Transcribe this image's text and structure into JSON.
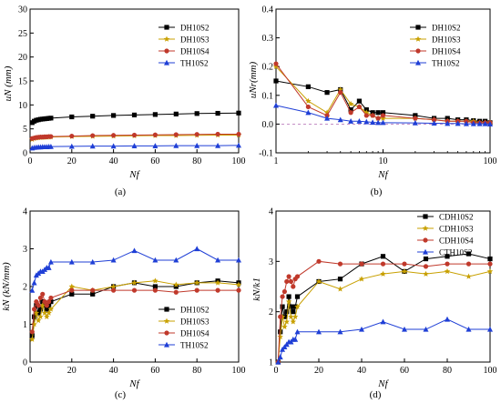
{
  "chart_data": [
    {
      "type": "line",
      "caption": "(a)",
      "xlabel": "Nf",
      "ylabel": "uN (mm)",
      "xlim": [
        0,
        100
      ],
      "ylim": [
        0,
        30
      ],
      "xticks": [
        0,
        20,
        40,
        60,
        80,
        100
      ],
      "yticks": [
        0,
        5,
        10,
        15,
        20,
        25,
        30
      ],
      "xscale": "linear",
      "legend": "upper-right",
      "series": [
        {
          "name": "DH10S2",
          "color": "#000000",
          "marker": "square",
          "x": [
            1,
            2,
            3,
            4,
            5,
            6,
            7,
            8,
            9,
            10,
            20,
            30,
            40,
            50,
            60,
            70,
            80,
            90,
            100
          ],
          "y": [
            6.3,
            6.6,
            6.8,
            6.9,
            7.0,
            7.05,
            7.1,
            7.15,
            7.2,
            7.25,
            7.5,
            7.65,
            7.8,
            7.9,
            8.0,
            8.1,
            8.2,
            8.25,
            8.3
          ]
        },
        {
          "name": "DH10S3",
          "color": "#c8a000",
          "marker": "star",
          "x": [
            1,
            2,
            3,
            4,
            5,
            6,
            7,
            8,
            9,
            10,
            20,
            30,
            40,
            50,
            60,
            70,
            80,
            90,
            100
          ],
          "y": [
            2.8,
            3.0,
            3.1,
            3.15,
            3.2,
            3.2,
            3.25,
            3.25,
            3.3,
            3.3,
            3.4,
            3.45,
            3.5,
            3.55,
            3.6,
            3.6,
            3.65,
            3.7,
            3.7
          ]
        },
        {
          "name": "DH10S4",
          "color": "#c0392b",
          "marker": "circle",
          "x": [
            1,
            2,
            3,
            4,
            5,
            6,
            7,
            8,
            9,
            10,
            20,
            30,
            40,
            50,
            60,
            70,
            80,
            90,
            100
          ],
          "y": [
            3.0,
            3.1,
            3.2,
            3.25,
            3.3,
            3.3,
            3.35,
            3.35,
            3.4,
            3.4,
            3.5,
            3.6,
            3.65,
            3.7,
            3.75,
            3.8,
            3.85,
            3.9,
            3.9
          ]
        },
        {
          "name": "TH10S2",
          "color": "#1f3fd6",
          "marker": "triangle",
          "x": [
            1,
            2,
            3,
            4,
            5,
            6,
            7,
            8,
            9,
            10,
            20,
            30,
            40,
            50,
            60,
            70,
            80,
            90,
            100
          ],
          "y": [
            1.0,
            1.1,
            1.15,
            1.2,
            1.2,
            1.25,
            1.25,
            1.25,
            1.3,
            1.3,
            1.35,
            1.4,
            1.4,
            1.45,
            1.45,
            1.5,
            1.5,
            1.5,
            1.55
          ]
        }
      ]
    },
    {
      "type": "line",
      "caption": "(b)",
      "xlabel": "Nf",
      "ylabel": "uNr(mm)",
      "xlim": [
        1,
        100
      ],
      "ylim": [
        -0.1,
        0.4
      ],
      "xticks": [
        1,
        10,
        100
      ],
      "yticks": [
        -0.1,
        0.0,
        0.1,
        0.2,
        0.3,
        0.4
      ],
      "xscale": "log",
      "legend": "upper-right",
      "series": [
        {
          "name": "DH10S2",
          "color": "#000000",
          "marker": "square",
          "x": [
            1,
            2,
            3,
            4,
            5,
            6,
            7,
            8,
            9,
            10,
            20,
            30,
            40,
            50,
            60,
            70,
            80,
            90,
            100
          ],
          "y": [
            0.15,
            0.13,
            0.11,
            0.12,
            0.05,
            0.08,
            0.05,
            0.04,
            0.04,
            0.04,
            0.03,
            0.02,
            0.02,
            0.015,
            0.015,
            0.012,
            0.01,
            0.01,
            0.005
          ]
        },
        {
          "name": "DH10S3",
          "color": "#c8a000",
          "marker": "star",
          "x": [
            1,
            2,
            3,
            4,
            5,
            6,
            7,
            8,
            9,
            10,
            20,
            30,
            40,
            50,
            60,
            70,
            80,
            90,
            100
          ],
          "y": [
            0.2,
            0.08,
            0.04,
            0.12,
            0.07,
            0.06,
            0.04,
            0.03,
            0.02,
            0.02,
            0.02,
            0.015,
            0.01,
            0.01,
            0.01,
            0.01,
            0.005,
            0.005,
            0.005
          ]
        },
        {
          "name": "DH10S4",
          "color": "#c0392b",
          "marker": "circle",
          "x": [
            1,
            2,
            3,
            4,
            5,
            6,
            7,
            8,
            9,
            10,
            20,
            30,
            40,
            50,
            60,
            70,
            80,
            90,
            100
          ],
          "y": [
            0.21,
            0.06,
            0.03,
            0.11,
            0.04,
            0.06,
            0.03,
            0.03,
            0.02,
            0.03,
            0.02,
            0.015,
            0.01,
            0.01,
            0.01,
            0.005,
            0.005,
            0.005,
            0.005
          ]
        },
        {
          "name": "TH10S2",
          "color": "#1f3fd6",
          "marker": "triangle",
          "x": [
            1,
            2,
            3,
            4,
            5,
            6,
            7,
            8,
            9,
            10,
            20,
            30,
            40,
            50,
            60,
            70,
            80,
            90,
            100
          ],
          "y": [
            0.065,
            0.04,
            0.02,
            0.015,
            0.01,
            0.01,
            0.008,
            0.006,
            0.005,
            0.005,
            0.004,
            0.003,
            0.002,
            0.002,
            0.001,
            0.001,
            0.001,
            0.001,
            0.0
          ]
        }
      ]
    },
    {
      "type": "line",
      "caption": "(c)",
      "xlabel": "Nf",
      "ylabel": "kN (kN/mm)",
      "xlim": [
        0,
        100
      ],
      "ylim": [
        0,
        4
      ],
      "xticks": [
        0,
        20,
        40,
        60,
        80,
        100
      ],
      "yticks": [
        0,
        1,
        2,
        3,
        4
      ],
      "xscale": "linear",
      "legend": "lower-right",
      "series": [
        {
          "name": "DH10S2",
          "color": "#000000",
          "marker": "square",
          "x": [
            1,
            2,
            3,
            4,
            5,
            6,
            7,
            8,
            9,
            10,
            20,
            30,
            40,
            50,
            60,
            70,
            80,
            90,
            100
          ],
          "y": [
            0.7,
            1.2,
            1.5,
            1.3,
            1.4,
            1.6,
            1.5,
            1.4,
            1.5,
            1.6,
            1.8,
            1.8,
            2.0,
            2.1,
            2.0,
            2.0,
            2.1,
            2.15,
            2.1
          ]
        },
        {
          "name": "DH10S3",
          "color": "#c8a000",
          "marker": "star",
          "x": [
            1,
            2,
            3,
            4,
            5,
            6,
            7,
            8,
            9,
            10,
            20,
            30,
            40,
            50,
            60,
            70,
            80,
            90,
            100
          ],
          "y": [
            0.6,
            1.0,
            1.3,
            1.1,
            1.2,
            1.5,
            1.3,
            1.2,
            1.3,
            1.4,
            2.0,
            1.9,
            2.0,
            2.1,
            2.15,
            2.05,
            2.1,
            2.1,
            2.05
          ]
        },
        {
          "name": "DH10S4",
          "color": "#c0392b",
          "marker": "circle",
          "x": [
            1,
            2,
            3,
            4,
            5,
            6,
            7,
            8,
            9,
            10,
            20,
            30,
            40,
            50,
            60,
            70,
            80,
            90,
            100
          ],
          "y": [
            0.8,
            1.4,
            1.6,
            1.5,
            1.7,
            1.8,
            1.6,
            1.5,
            1.6,
            1.7,
            1.9,
            1.9,
            1.9,
            1.9,
            1.9,
            1.85,
            1.9,
            1.9,
            1.9
          ]
        },
        {
          "name": "TH10S2",
          "color": "#1f3fd6",
          "marker": "triangle",
          "x": [
            1,
            2,
            3,
            4,
            5,
            6,
            7,
            8,
            9,
            10,
            20,
            30,
            40,
            50,
            60,
            70,
            80,
            90,
            100
          ],
          "y": [
            1.9,
            2.1,
            2.3,
            2.35,
            2.4,
            2.4,
            2.45,
            2.5,
            2.5,
            2.65,
            2.65,
            2.65,
            2.7,
            2.95,
            2.7,
            2.7,
            3.0,
            2.7,
            2.7
          ]
        }
      ]
    },
    {
      "type": "line",
      "caption": "(d)",
      "xlabel": "Nf",
      "ylabel": "kN/k1",
      "xlim": [
        0,
        100
      ],
      "ylim": [
        1,
        4
      ],
      "xticks": [
        0,
        20,
        40,
        60,
        80,
        100
      ],
      "yticks": [
        1,
        2,
        3,
        4
      ],
      "xscale": "linear",
      "legend": "upper-right",
      "series": [
        {
          "name": "CDH10S2",
          "color": "#000000",
          "marker": "square",
          "x": [
            1,
            2,
            3,
            4,
            5,
            6,
            7,
            8,
            9,
            10,
            20,
            30,
            40,
            50,
            60,
            70,
            80,
            90,
            100
          ],
          "y": [
            1.0,
            1.6,
            2.1,
            1.9,
            2.0,
            2.3,
            2.1,
            2.0,
            2.1,
            2.3,
            2.6,
            2.65,
            2.95,
            3.1,
            2.8,
            3.05,
            3.1,
            3.15,
            3.05
          ]
        },
        {
          "name": "CDH10S3",
          "color": "#c8a000",
          "marker": "star",
          "x": [
            1,
            2,
            3,
            4,
            5,
            6,
            7,
            8,
            9,
            10,
            20,
            30,
            40,
            50,
            60,
            70,
            80,
            90,
            100
          ],
          "y": [
            1.0,
            1.5,
            1.9,
            1.7,
            1.8,
            2.2,
            1.9,
            1.8,
            1.9,
            2.1,
            2.6,
            2.45,
            2.65,
            2.75,
            2.8,
            2.75,
            2.8,
            2.7,
            2.8
          ]
        },
        {
          "name": "CDH10S4",
          "color": "#c0392b",
          "marker": "circle",
          "x": [
            1,
            2,
            3,
            4,
            5,
            6,
            7,
            8,
            9,
            10,
            20,
            30,
            40,
            50,
            60,
            70,
            80,
            90,
            100
          ],
          "y": [
            1.0,
            1.9,
            2.3,
            2.4,
            2.6,
            2.7,
            2.6,
            2.5,
            2.65,
            2.7,
            3.0,
            2.95,
            2.95,
            2.95,
            2.95,
            2.9,
            2.95,
            2.95,
            2.95
          ]
        },
        {
          "name": "CTH10S2",
          "color": "#1f3fd6",
          "marker": "triangle",
          "x": [
            1,
            2,
            3,
            4,
            5,
            6,
            7,
            8,
            9,
            10,
            20,
            30,
            40,
            50,
            60,
            70,
            80,
            90,
            100
          ],
          "y": [
            1.0,
            1.1,
            1.25,
            1.3,
            1.35,
            1.4,
            1.4,
            1.45,
            1.45,
            1.6,
            1.6,
            1.6,
            1.65,
            1.8,
            1.65,
            1.65,
            1.85,
            1.65,
            1.65
          ]
        }
      ]
    }
  ]
}
